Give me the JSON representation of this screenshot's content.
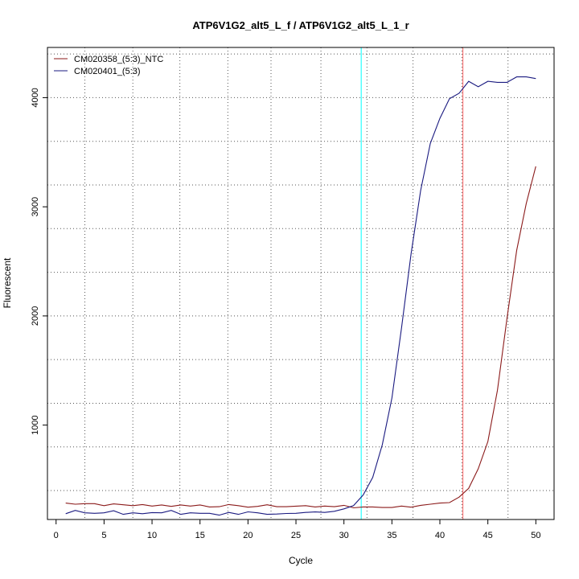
{
  "chart_data": {
    "type": "line",
    "title": "ATP6V1G2_alt5_L_f / ATP6V1G2_alt5_L_1_r",
    "xlabel": "Cycle",
    "ylabel": "Fluorescent",
    "xlim": [
      -0.9,
      51.9
    ],
    "ylim": [
      135,
      4460
    ],
    "x_ticks": [
      0,
      5,
      10,
      15,
      20,
      25,
      30,
      35,
      40,
      45,
      50
    ],
    "y_ticks": [
      1000,
      2000,
      3000,
      4000
    ],
    "x_grid": [
      3,
      8,
      12.9,
      17.9,
      22.4,
      27.6,
      32.4,
      37.2,
      42.3,
      47.1
    ],
    "y_grid": [
      400,
      800,
      1200,
      1600,
      2000,
      2400,
      2800,
      3200,
      3600,
      4000,
      4400
    ],
    "legend_position": "top-left",
    "x": [
      1,
      2,
      3,
      4,
      5,
      6,
      7,
      8,
      9,
      10,
      11,
      12,
      13,
      14,
      15,
      16,
      17,
      18,
      19,
      20,
      21,
      22,
      23,
      24,
      25,
      26,
      27,
      28,
      29,
      30,
      31,
      32,
      33,
      34,
      35,
      36,
      37,
      38,
      39,
      40,
      41,
      42,
      43,
      44,
      45,
      46,
      47,
      48,
      49,
      50
    ],
    "series": [
      {
        "name": "CM020358_(5:3)_NTC",
        "color": "#8b1a1a",
        "values": [
          285,
          275,
          280,
          280,
          262,
          278,
          270,
          262,
          272,
          258,
          268,
          255,
          268,
          258,
          268,
          250,
          252,
          272,
          262,
          248,
          255,
          270,
          252,
          252,
          257,
          262,
          250,
          258,
          252,
          265,
          242,
          250,
          250,
          245,
          245,
          258,
          248,
          265,
          275,
          285,
          290,
          340,
          420,
          600,
          850,
          1320,
          1980,
          2600,
          3030,
          3370
        ]
      },
      {
        "name": "CM020401_(5:3)",
        "color": "#1a1a80",
        "values": [
          188,
          218,
          196,
          192,
          196,
          215,
          182,
          196,
          188,
          198,
          196,
          218,
          182,
          196,
          192,
          192,
          175,
          200,
          182,
          205,
          196,
          182,
          185,
          190,
          192,
          200,
          204,
          200,
          210,
          232,
          262,
          360,
          520,
          820,
          1250,
          1890,
          2570,
          3150,
          3580,
          3810,
          3990,
          4040,
          4150,
          4100,
          4150,
          4140,
          4140,
          4190,
          4190,
          4175
        ]
      }
    ],
    "threshold_lines": [
      {
        "x": 31.8,
        "color": "#00ffff"
      },
      {
        "x": 42.4,
        "color": "#ff6666"
      }
    ]
  }
}
